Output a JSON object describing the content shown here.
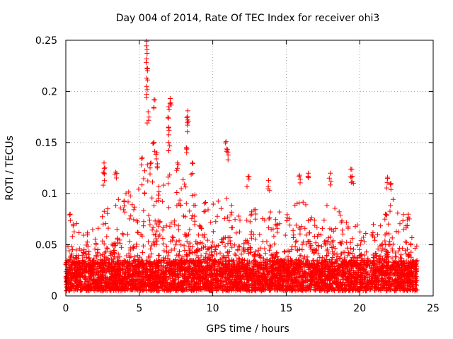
{
  "chart_data": {
    "type": "scatter",
    "title": "Day 004 of 2014, Rate Of TEC Index for receiver ohi3",
    "xlabel": "GPS time / hours",
    "ylabel": "ROTI / TECUs",
    "xlim": [
      0,
      25
    ],
    "ylim": [
      0,
      0.25
    ],
    "x_ticks": [
      "0",
      "5",
      "10",
      "15",
      "20",
      "25"
    ],
    "y_ticks": [
      "0",
      "0.05",
      "0.1",
      "0.15",
      "0.2",
      "0.25"
    ],
    "grid": true,
    "legend": "none",
    "marker": "plus",
    "color": "#ff0000",
    "x_range_of_data": [
      0,
      23.9
    ],
    "baseline_range": [
      0.005,
      0.035
    ],
    "notable_points": [
      {
        "x": 5.5,
        "y": 0.249
      },
      {
        "x": 5.5,
        "y": 0.232
      },
      {
        "x": 5.55,
        "y": 0.222
      },
      {
        "x": 5.5,
        "y": 0.205
      },
      {
        "x": 5.6,
        "y": 0.18
      },
      {
        "x": 6.0,
        "y": 0.192
      },
      {
        "x": 7.1,
        "y": 0.193
      },
      {
        "x": 7.0,
        "y": 0.185
      },
      {
        "x": 7.0,
        "y": 0.165
      },
      {
        "x": 8.3,
        "y": 0.181
      },
      {
        "x": 8.3,
        "y": 0.172
      },
      {
        "x": 6.0,
        "y": 0.15
      },
      {
        "x": 10.9,
        "y": 0.151
      },
      {
        "x": 11.0,
        "y": 0.143
      },
      {
        "x": 2.6,
        "y": 0.13
      },
      {
        "x": 2.6,
        "y": 0.12
      },
      {
        "x": 3.4,
        "y": 0.121
      },
      {
        "x": 5.2,
        "y": 0.135
      },
      {
        "x": 5.8,
        "y": 0.13
      },
      {
        "x": 6.2,
        "y": 0.14
      },
      {
        "x": 7.0,
        "y": 0.15
      },
      {
        "x": 7.6,
        "y": 0.13
      },
      {
        "x": 8.2,
        "y": 0.145
      },
      {
        "x": 8.6,
        "y": 0.13
      },
      {
        "x": 12.4,
        "y": 0.117
      },
      {
        "x": 13.8,
        "y": 0.113
      },
      {
        "x": 15.9,
        "y": 0.118
      },
      {
        "x": 16.5,
        "y": 0.12
      },
      {
        "x": 18.0,
        "y": 0.12
      },
      {
        "x": 19.4,
        "y": 0.124
      },
      {
        "x": 19.5,
        "y": 0.117
      },
      {
        "x": 21.9,
        "y": 0.116
      },
      {
        "x": 22.1,
        "y": 0.11
      },
      {
        "x": 0.3,
        "y": 0.08
      },
      {
        "x": 0.5,
        "y": 0.07
      },
      {
        "x": 23.3,
        "y": 0.08
      }
    ],
    "activity_envelope": [
      {
        "x": 0,
        "y": 0.06
      },
      {
        "x": 1,
        "y": 0.075
      },
      {
        "x": 2,
        "y": 0.08
      },
      {
        "x": 3,
        "y": 0.09
      },
      {
        "x": 4,
        "y": 0.1
      },
      {
        "x": 5,
        "y": 0.11
      },
      {
        "x": 5.5,
        "y": 0.13
      },
      {
        "x": 6,
        "y": 0.13
      },
      {
        "x": 7,
        "y": 0.12
      },
      {
        "x": 8,
        "y": 0.115
      },
      {
        "x": 9,
        "y": 0.1
      },
      {
        "x": 10,
        "y": 0.09
      },
      {
        "x": 11,
        "y": 0.1
      },
      {
        "x": 12,
        "y": 0.08
      },
      {
        "x": 13,
        "y": 0.085
      },
      {
        "x": 14,
        "y": 0.09
      },
      {
        "x": 15,
        "y": 0.08
      },
      {
        "x": 16,
        "y": 0.095
      },
      {
        "x": 17,
        "y": 0.085
      },
      {
        "x": 18,
        "y": 0.09
      },
      {
        "x": 19,
        "y": 0.09
      },
      {
        "x": 20,
        "y": 0.07
      },
      {
        "x": 21,
        "y": 0.07
      },
      {
        "x": 22,
        "y": 0.1
      },
      {
        "x": 23,
        "y": 0.08
      },
      {
        "x": 23.9,
        "y": 0.05
      }
    ]
  }
}
